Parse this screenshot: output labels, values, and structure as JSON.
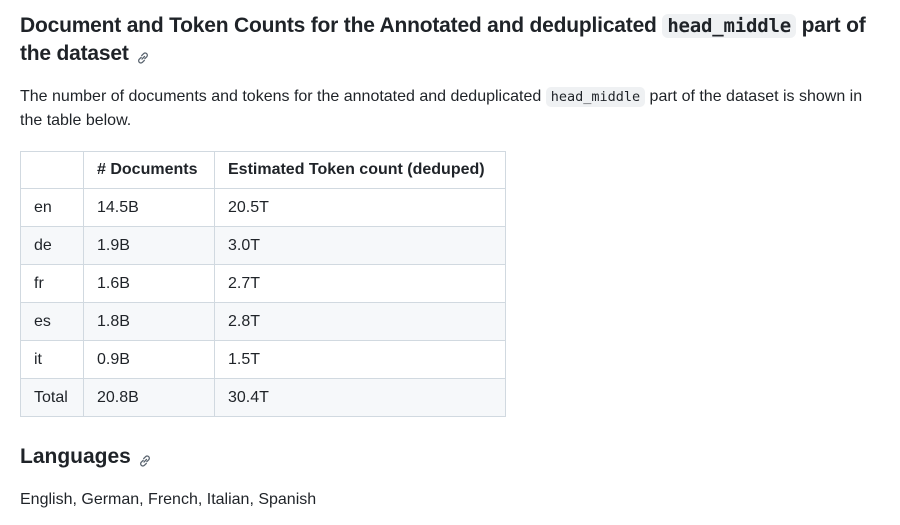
{
  "section": {
    "heading_prefix": "Document and Token Counts for the Annotated and deduplicated ",
    "heading_code": "head_middle",
    "heading_suffix": " part of the dataset",
    "description_prefix": "The number of documents and tokens for the annotated and deduplicated ",
    "description_code": "head_middle",
    "description_suffix": " part of the dataset is shown in the table below."
  },
  "table": {
    "headers": [
      "",
      "# Documents",
      "Estimated Token count (deduped)"
    ],
    "rows": [
      {
        "lang": "en",
        "docs": "14.5B",
        "tokens": "20.5T"
      },
      {
        "lang": "de",
        "docs": "1.9B",
        "tokens": "3.0T"
      },
      {
        "lang": "fr",
        "docs": "1.6B",
        "tokens": "2.7T"
      },
      {
        "lang": "es",
        "docs": "1.8B",
        "tokens": "2.8T"
      },
      {
        "lang": "it",
        "docs": "0.9B",
        "tokens": "1.5T"
      },
      {
        "lang": "Total",
        "docs": "20.8B",
        "tokens": "30.4T"
      }
    ]
  },
  "languages": {
    "heading": "Languages",
    "text": "English, German, French, Italian, Spanish"
  },
  "icons": {
    "anchor": "link-icon"
  },
  "colors": {
    "text": "#1f2328",
    "code_bg": "#eff1f3",
    "border": "#d1d9e0",
    "stripe": "#f6f8fa"
  }
}
